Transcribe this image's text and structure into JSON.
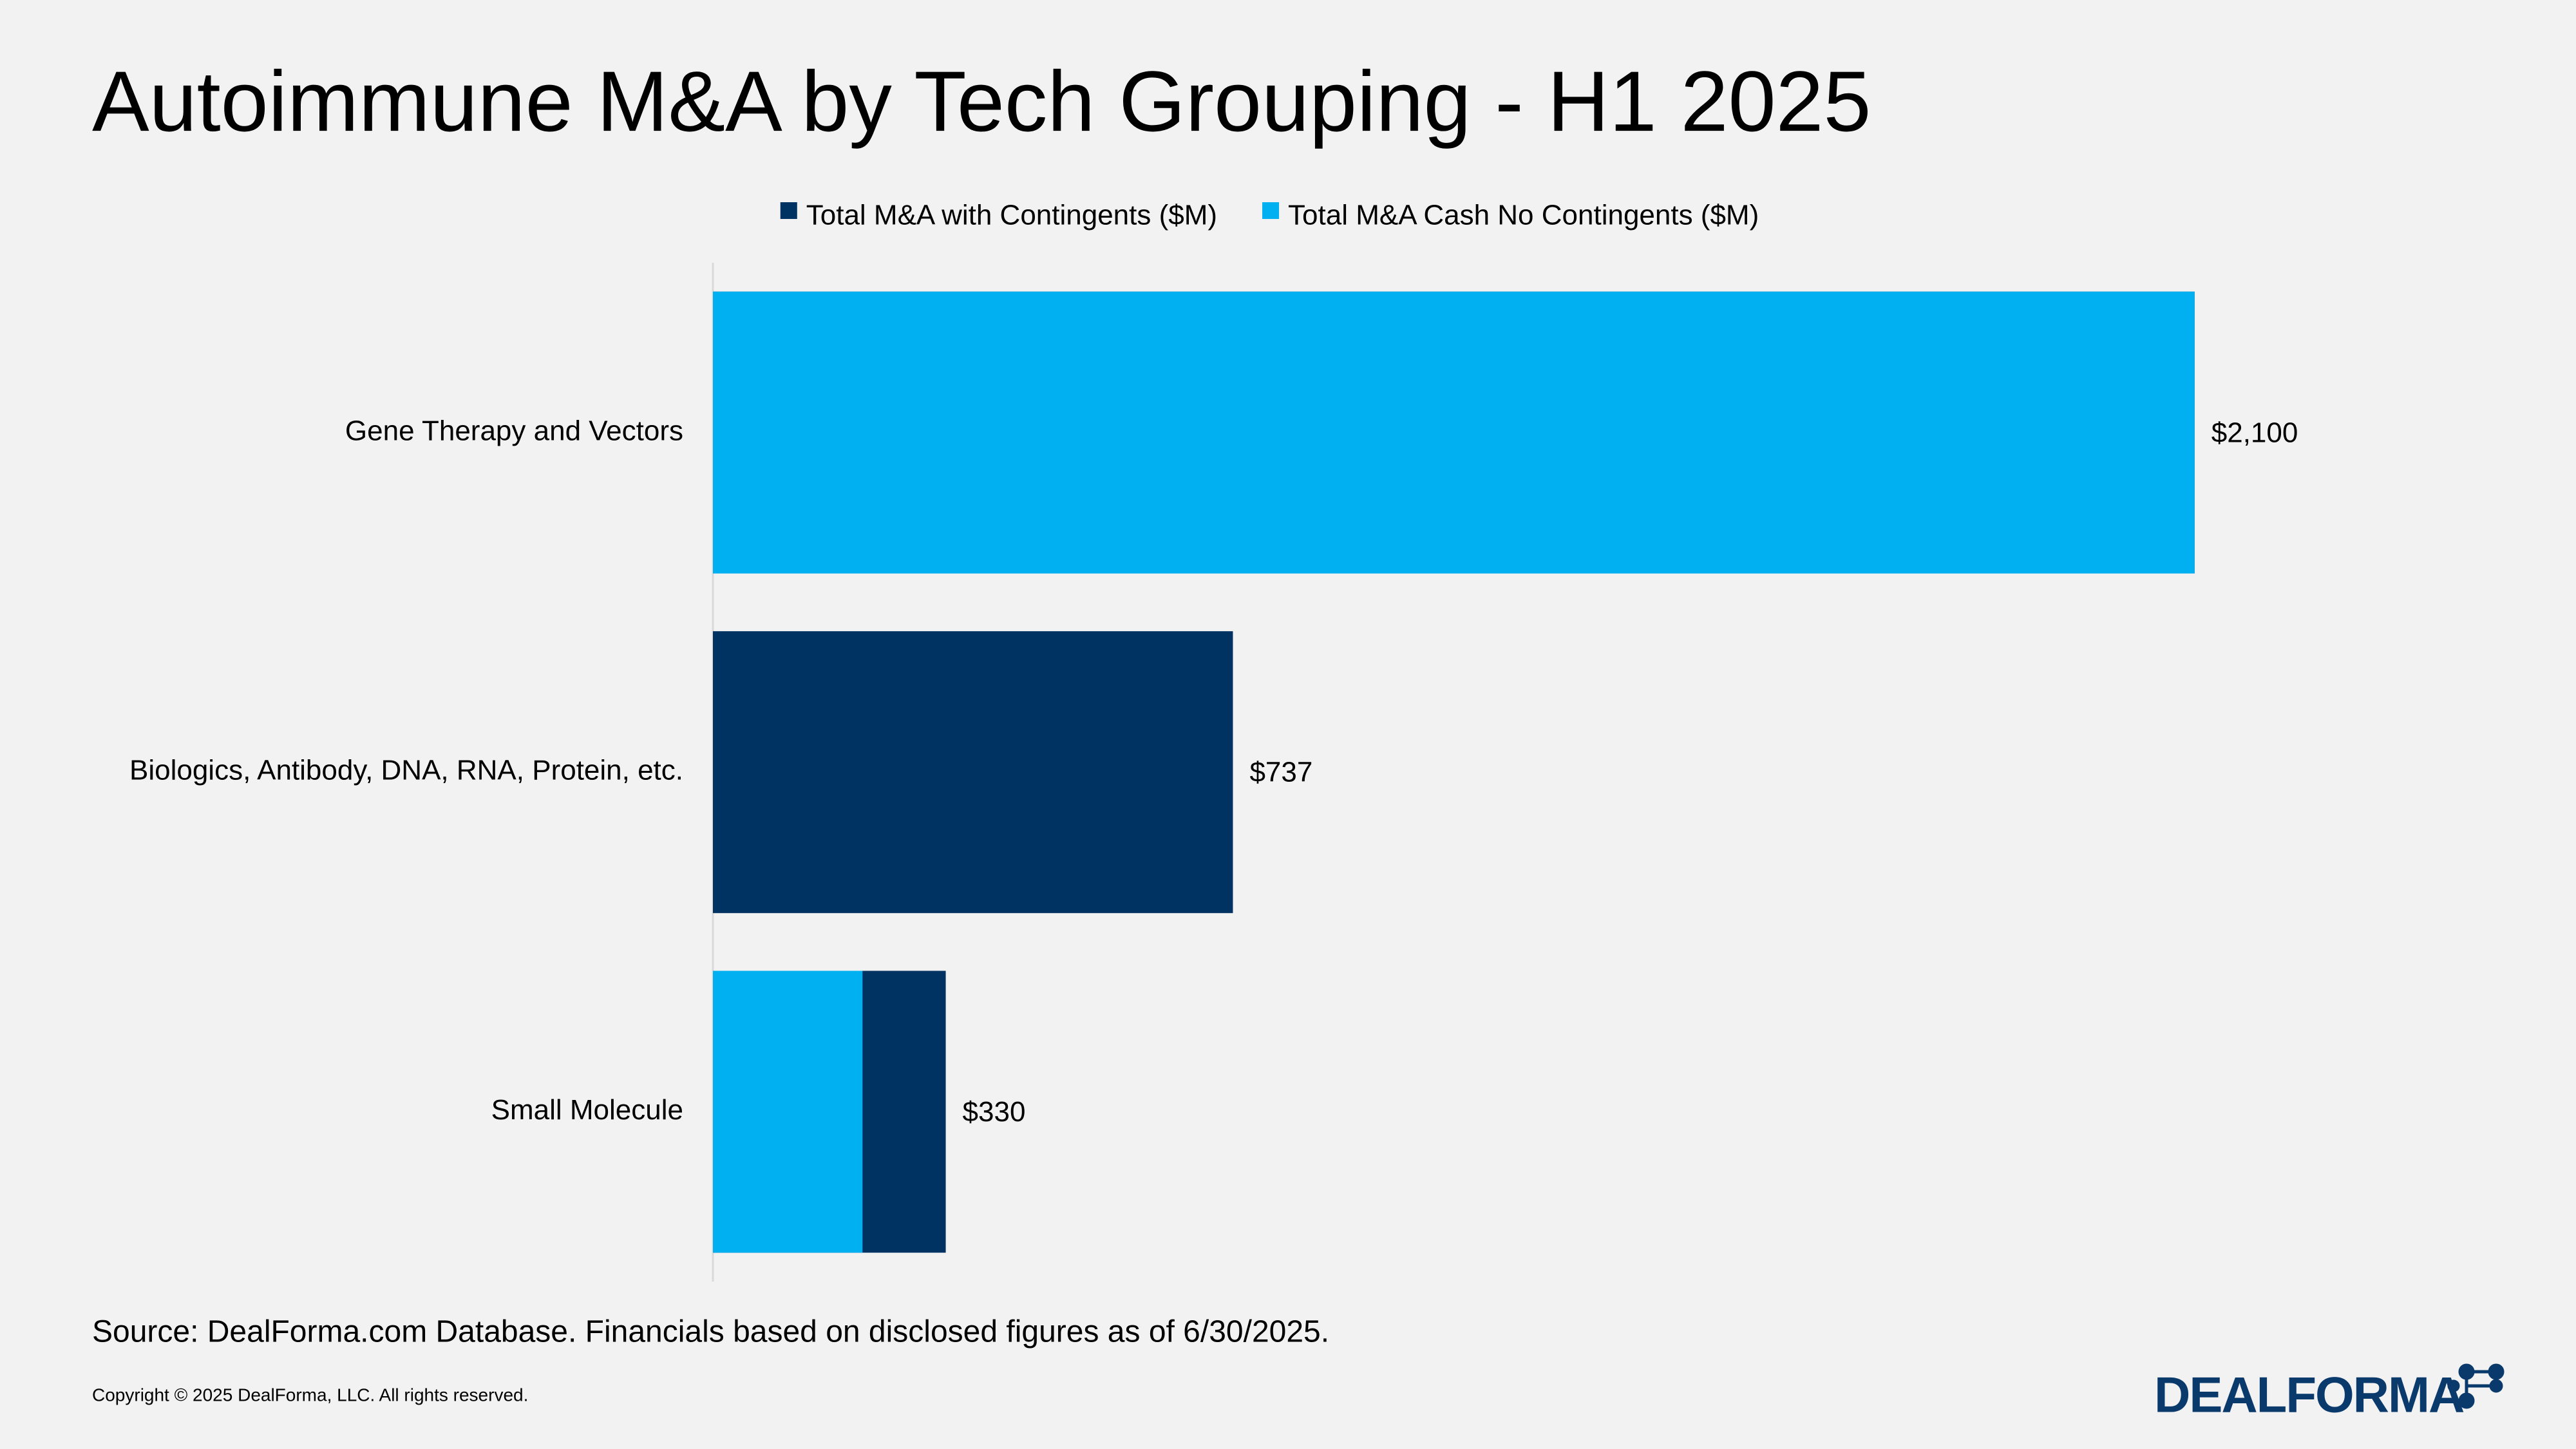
{
  "chart_data": {
    "type": "bar",
    "orientation": "horizontal",
    "overlap": true,
    "title": "Autoimmune M&A by Tech Grouping - H1 2025",
    "categories": [
      "Gene Therapy and Vectors",
      "Biologics, Antibody, DNA, RNA, Protein, etc.",
      "Small Molecule"
    ],
    "series": [
      {
        "name": "Total M&A with Contingents ($M)",
        "color": "#003262",
        "values": [
          2100,
          737,
          330
        ],
        "value_labels": [
          "$2,100",
          "$737",
          "$330"
        ]
      },
      {
        "name": "Total M&A Cash No Contingents ($M)",
        "color": "#00b0f0",
        "values": [
          2100,
          null,
          212
        ]
      }
    ],
    "xlim": [
      0,
      2500
    ],
    "legend": "top"
  },
  "source": "Source: DealForma.com Database. Financials based on disclosed figures as of 6/30/2025.",
  "copyright": "Copyright © 2025 DealForma, LLC. All rights reserved.",
  "logo": "DEALFORMA"
}
